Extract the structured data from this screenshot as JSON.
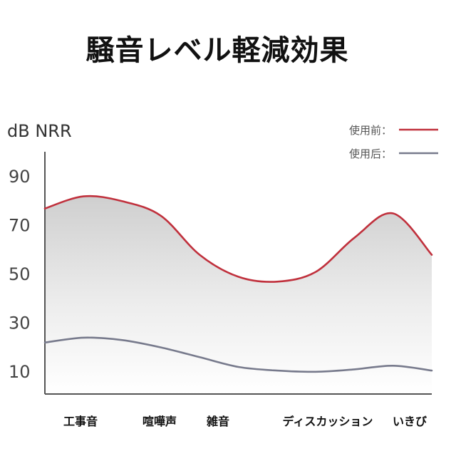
{
  "title": "騒音レベル軽減効果",
  "chart_data": {
    "type": "area",
    "title": "騒音レベル軽減効果",
    "ylabel": "dB NRR",
    "xlabel": "",
    "yticks": [
      90,
      70,
      50,
      30,
      10
    ],
    "ylim": [
      0,
      100
    ],
    "categories": [
      "工事音",
      "喧嘩声",
      "雑音",
      "ディスカッション",
      "いきび"
    ],
    "series": [
      {
        "name": "使用前：",
        "color": "#c0303c",
        "points": [
          [
            0.0,
            77
          ],
          [
            0.5,
            82
          ],
          [
            1.0,
            80
          ],
          [
            1.5,
            74
          ],
          [
            2.0,
            58
          ],
          [
            2.5,
            49
          ],
          [
            3.0,
            47
          ],
          [
            3.5,
            51
          ],
          [
            4.0,
            65
          ],
          [
            4.5,
            75
          ],
          [
            5.0,
            58
          ]
        ]
      },
      {
        "name": "使用后：",
        "color": "#777a8c",
        "points": [
          [
            0.0,
            22
          ],
          [
            0.5,
            24
          ],
          [
            1.0,
            23
          ],
          [
            1.5,
            20
          ],
          [
            2.0,
            16
          ],
          [
            2.5,
            12
          ],
          [
            3.0,
            10.5
          ],
          [
            3.5,
            10
          ],
          [
            4.0,
            11
          ],
          [
            4.5,
            12.5
          ],
          [
            5.0,
            10.5
          ]
        ]
      }
    ],
    "legend_position": "top-right",
    "grid": false
  }
}
